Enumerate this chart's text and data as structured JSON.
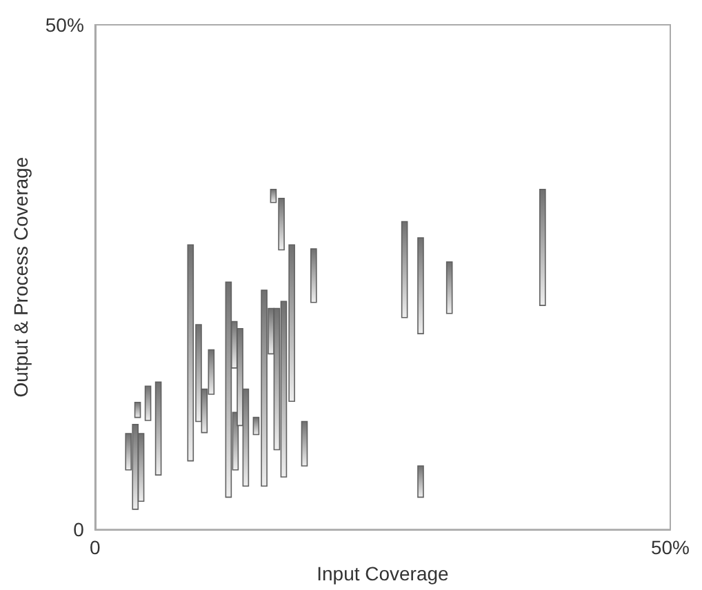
{
  "chart_data": {
    "type": "bar",
    "xlabel": "Input Coverage",
    "ylabel": "Output & Process Coverage",
    "series": [
      {
        "color": "#707070",
        "x": [
          2.9,
          3.5,
          3.7,
          4.0,
          4.6,
          5.5,
          8.3,
          9.0,
          9.5,
          10.1,
          11.6,
          12.1,
          12.2,
          12.6,
          13.1,
          14.0,
          14.7,
          15.3,
          15.5,
          15.8,
          16.2,
          16.4,
          17.1,
          18.2,
          19.0,
          26.9,
          28.3,
          30.8,
          38.9
        ],
        "base": [
          5.9,
          2.0,
          11.1,
          2.8,
          10.8,
          5.4,
          6.8,
          10.7,
          9.6,
          13.4,
          3.2,
          16.0,
          5.9,
          10.3,
          4.3,
          9.4,
          4.3,
          17.4,
          32.4,
          7.9,
          27.7,
          5.2,
          12.7,
          6.3,
          22.5,
          21.0,
          19.4,
          21.4,
          22.2
        ],
        "values": [
          3.6,
          8.4,
          1.5,
          6.7,
          3.4,
          9.2,
          21.4,
          9.6,
          4.3,
          4.4,
          21.3,
          4.6,
          5.7,
          9.6,
          9.6,
          1.7,
          19.4,
          4.5,
          1.3,
          14.0,
          5.1,
          17.4,
          15.5,
          4.4,
          5.3,
          9.5,
          9.5,
          5.1,
          11.5
        ]
      },
      {
        "color": "#707070",
        "x": [
          28.3
        ],
        "base": [
          3.2
        ],
        "values": [
          3.1
        ]
      }
    ],
    "xlim": [
      0,
      50
    ],
    "ylim": [
      0,
      50
    ],
    "xticks": [
      0,
      {
        "value": 50,
        "label": "50%"
      }
    ],
    "yticks": [
      0,
      {
        "value": 50,
        "label": "50%"
      }
    ],
    "grid": false
  }
}
